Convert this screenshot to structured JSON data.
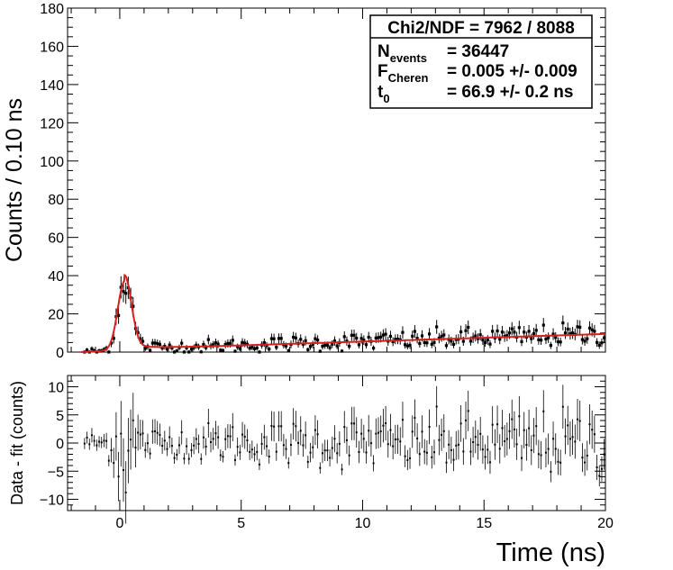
{
  "chart_data": [
    {
      "type": "scatter",
      "panel": "main",
      "description_note": "histogram with Poisson error bars and fitted curve",
      "xlabel": "Time (ns)",
      "ylabel": "Counts / 0.10 ns",
      "xlim": [
        -2.15,
        20
      ],
      "ylim": [
        0,
        180
      ],
      "x_ticks": [
        0,
        5,
        10,
        15,
        20
      ],
      "x_tick_labels": [
        "0",
        "5",
        "10",
        "15",
        "20"
      ],
      "y_ticks": [
        0,
        20,
        40,
        60,
        80,
        100,
        120,
        140,
        160,
        180
      ],
      "y_tick_labels": [
        "0",
        "20",
        "40",
        "60",
        "80",
        "100",
        "120",
        "140",
        "160",
        "180"
      ],
      "bin_width": 0.1,
      "fit": {
        "name": "fit",
        "color": "#d62020",
        "peak_center": 0.2,
        "peak_sigma": 0.28,
        "peak_amplitude": 37.5,
        "tail_amplitude": 9,
        "tail_tau": 0.9,
        "baseline_start": 2.5,
        "baseline_at_start": 2.5,
        "baseline_at_end": 9.5,
        "start": -1.6
      },
      "stats_box": {
        "title": "Chi2/NDF = 7962 / 8088",
        "rows": [
          {
            "label": "N",
            "sub": "events",
            "value": "= 36447"
          },
          {
            "label": "F",
            "sub": "Cheren",
            "value": "= 0.005 +/- 0.009"
          },
          {
            "label": "t",
            "sub": "0",
            "value": "= 66.9 +/- 0.2 ns"
          }
        ]
      }
    },
    {
      "type": "scatter",
      "panel": "residual",
      "ylabel": "Data - fit (counts)",
      "xlim": [
        -2.15,
        20
      ],
      "ylim": [
        -12,
        12
      ],
      "y_ticks": [
        -10,
        -5,
        0,
        5,
        10
      ],
      "y_tick_labels": [
        "−10",
        "−5",
        "0",
        "5",
        "10"
      ]
    }
  ]
}
